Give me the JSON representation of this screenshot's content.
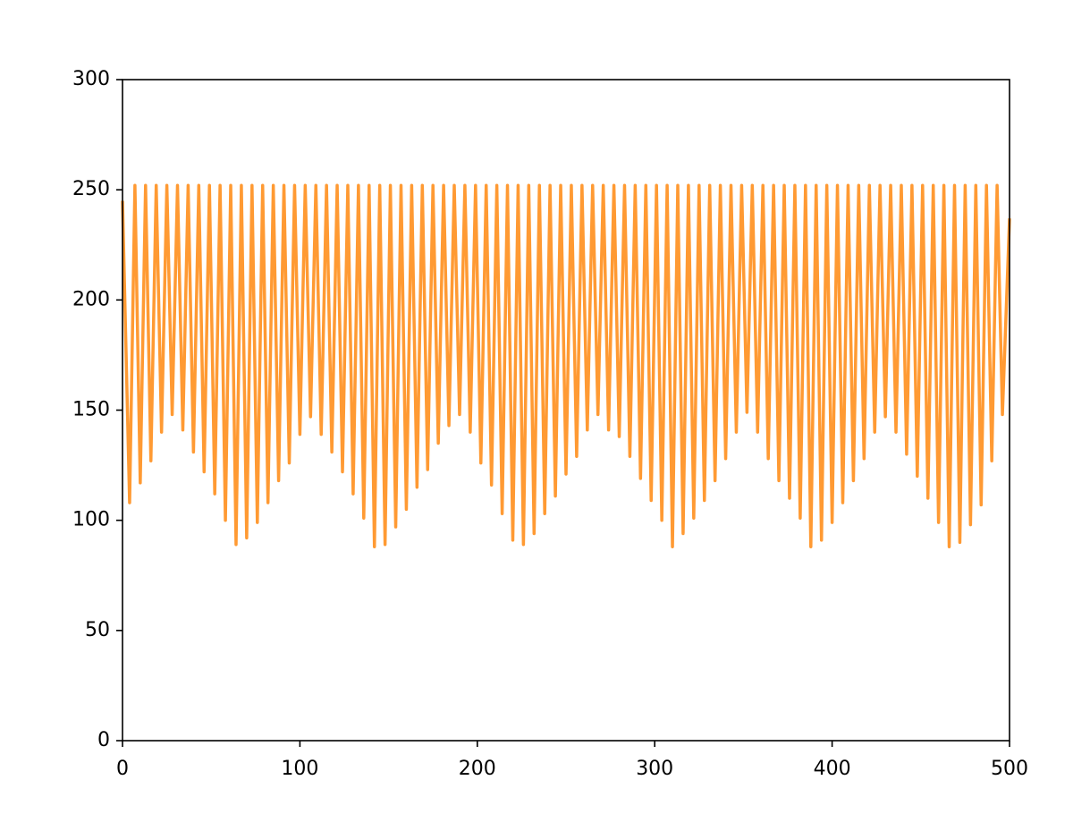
{
  "chart_data": {
    "type": "line",
    "color": "#ff9a33",
    "xlim": [
      0,
      500
    ],
    "xticks": [
      0,
      100,
      200,
      300,
      400,
      500
    ],
    "ylim": [
      0,
      300
    ],
    "yticks": [
      0,
      50,
      100,
      150,
      200,
      250,
      300
    ],
    "x": [
      0,
      4,
      7,
      10,
      13,
      16,
      19,
      22,
      25,
      28,
      31,
      34,
      37,
      40,
      43,
      46,
      49,
      52,
      55,
      58,
      61,
      64,
      67,
      70,
      73,
      76,
      79,
      82,
      85,
      88,
      91,
      94,
      97,
      100,
      103,
      106,
      109,
      112,
      115,
      118,
      121,
      124,
      127,
      130,
      133,
      136,
      139,
      142,
      145,
      148,
      151,
      154,
      157,
      160,
      163,
      166,
      169,
      172,
      175,
      178,
      181,
      184,
      187,
      190,
      193,
      196,
      199,
      202,
      205,
      208,
      211,
      214,
      217,
      220,
      223,
      226,
      229,
      232,
      235,
      238,
      241,
      244,
      247,
      250,
      253,
      256,
      259,
      262,
      265,
      268,
      271,
      274,
      277,
      280,
      283,
      286,
      289,
      292,
      295,
      298,
      301,
      304,
      307,
      310,
      313,
      316,
      319,
      322,
      325,
      328,
      331,
      334,
      337,
      340,
      343,
      346,
      349,
      352,
      355,
      358,
      361,
      364,
      367,
      370,
      373,
      376,
      379,
      382,
      385,
      388,
      391,
      394,
      397,
      400,
      403,
      406,
      409,
      412,
      415,
      418,
      421,
      424,
      427,
      430,
      433,
      436,
      439,
      442,
      445,
      448,
      451,
      454,
      457,
      460,
      463,
      466,
      469,
      472,
      475,
      478,
      481,
      484,
      487,
      490,
      493,
      496,
      500
    ],
    "values": [
      245,
      108,
      252,
      117,
      252,
      127,
      252,
      140,
      252,
      148,
      252,
      141,
      252,
      131,
      252,
      122,
      252,
      112,
      252,
      100,
      252,
      89,
      252,
      92,
      252,
      99,
      252,
      108,
      252,
      118,
      252,
      126,
      252,
      139,
      252,
      147,
      252,
      139,
      252,
      131,
      252,
      122,
      252,
      112,
      252,
      101,
      252,
      88,
      252,
      89,
      252,
      97,
      252,
      105,
      252,
      115,
      252,
      123,
      252,
      135,
      252,
      143,
      252,
      148,
      252,
      140,
      252,
      126,
      252,
      116,
      252,
      103,
      252,
      91,
      252,
      89,
      252,
      94,
      252,
      103,
      252,
      111,
      252,
      121,
      252,
      129,
      252,
      141,
      252,
      148,
      252,
      141,
      252,
      138,
      252,
      129,
      252,
      119,
      252,
      109,
      252,
      100,
      252,
      88,
      252,
      94,
      252,
      101,
      252,
      109,
      252,
      118,
      252,
      128,
      252,
      140,
      252,
      149,
      252,
      140,
      252,
      128,
      252,
      118,
      252,
      110,
      252,
      101,
      252,
      88,
      252,
      91,
      252,
      99,
      252,
      108,
      252,
      118,
      252,
      128,
      252,
      140,
      252,
      147,
      252,
      140,
      252,
      130,
      252,
      120,
      252,
      110,
      252,
      99,
      252,
      88,
      252,
      90,
      252,
      98,
      252,
      107,
      252,
      127,
      252,
      148,
      237
    ]
  }
}
